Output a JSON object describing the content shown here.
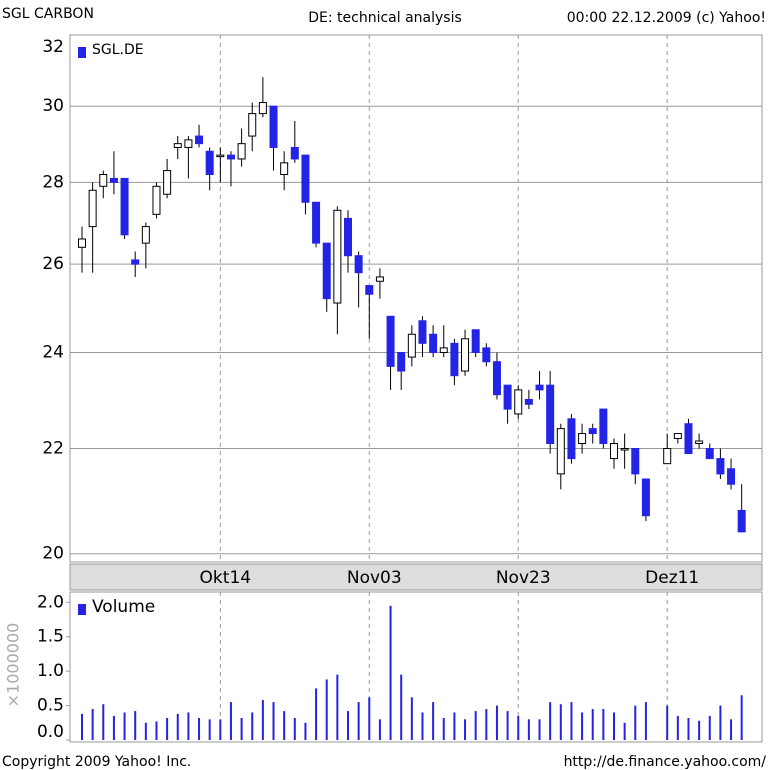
{
  "header": {
    "left": "SGL CARBON",
    "right": "00:00 22.12.2009 (c) Yahoo!"
  },
  "footer": {
    "left": "Copyright 2009 Yahoo! Inc.",
    "right": "http://de.finance.yahoo.com/"
  },
  "chart_data": [
    {
      "type": "candlestick",
      "title": "DE: technical analysis",
      "log_scale": true,
      "grid": true,
      "categories": [
        null,
        null,
        null,
        null,
        null,
        null,
        null,
        null,
        null,
        null,
        null,
        null,
        null,
        "Okt14",
        null,
        null,
        null,
        null,
        null,
        null,
        null,
        null,
        null,
        null,
        null,
        null,
        null,
        "Nov03",
        null,
        null,
        null,
        null,
        null,
        null,
        null,
        null,
        null,
        null,
        null,
        null,
        null,
        "Nov23",
        null,
        null,
        null,
        null,
        null,
        null,
        null,
        null,
        null,
        null,
        null,
        null,
        null,
        "Dez11",
        null,
        null,
        null,
        null,
        null,
        null,
        null
      ],
      "ylim": [
        19.85,
        32
      ],
      "yticks": [
        20,
        22,
        24,
        26,
        28,
        30,
        32
      ],
      "series": [
        {
          "name": "SGL.DE",
          "color": "#2424e6",
          "up_color": "#ffffff",
          "open": [
            26.4,
            26.9,
            27.9,
            28.1,
            28.1,
            26.1,
            26.5,
            27.2,
            27.7,
            28.9,
            28.9,
            29.2,
            28.8,
            28.7,
            28.7,
            28.6,
            29.2,
            29.8,
            30.0,
            28.2,
            28.9,
            28.7,
            27.5,
            26.5,
            25.1,
            27.1,
            26.2,
            25.5,
            25.6,
            24.8,
            24.0,
            23.9,
            24.7,
            24.4,
            24.0,
            24.2,
            23.6,
            24.5,
            24.1,
            23.8,
            23.3,
            22.7,
            23.0,
            23.3,
            23.3,
            21.5,
            22.6,
            22.1,
            22.4,
            22.8,
            21.8,
            22.0,
            22.0,
            21.4,
            null,
            21.7,
            22.2,
            22.5,
            22.1,
            22.0,
            21.8,
            21.6,
            20.8
          ],
          "high": [
            26.9,
            28.0,
            28.3,
            28.8,
            28.1,
            26.3,
            27.0,
            28.0,
            28.6,
            29.2,
            29.2,
            29.5,
            28.9,
            28.9,
            28.8,
            29.4,
            30.1,
            30.8,
            30.0,
            28.8,
            29.6,
            28.7,
            27.5,
            26.5,
            27.4,
            27.3,
            26.3,
            25.5,
            25.9,
            24.8,
            24.0,
            24.6,
            24.8,
            24.6,
            24.6,
            24.3,
            24.5,
            24.5,
            24.2,
            24.0,
            23.3,
            23.3,
            23.2,
            23.6,
            23.6,
            22.5,
            22.7,
            22.5,
            22.5,
            22.8,
            22.2,
            22.3,
            22.0,
            21.4,
            null,
            22.3,
            22.3,
            22.6,
            22.3,
            22.1,
            22.0,
            21.8,
            21.3
          ],
          "low": [
            25.8,
            25.8,
            27.6,
            27.7,
            26.6,
            25.7,
            25.9,
            27.1,
            27.6,
            28.6,
            28.1,
            28.9,
            27.8,
            28.0,
            27.9,
            28.4,
            28.8,
            29.7,
            28.3,
            27.8,
            28.5,
            27.2,
            26.4,
            24.9,
            24.4,
            25.8,
            25.0,
            24.3,
            25.2,
            23.2,
            23.2,
            23.7,
            23.9,
            23.9,
            23.9,
            23.3,
            23.5,
            23.9,
            23.7,
            23.0,
            22.5,
            22.6,
            22.8,
            23.0,
            21.9,
            21.2,
            21.7,
            21.9,
            22.1,
            22.0,
            21.6,
            21.6,
            21.3,
            20.6,
            null,
            21.7,
            22.1,
            21.9,
            22.0,
            21.8,
            21.4,
            21.2,
            20.4
          ],
          "close": [
            26.6,
            27.8,
            28.2,
            28.0,
            26.7,
            26.0,
            26.9,
            27.9,
            28.3,
            29.0,
            29.1,
            29.0,
            28.2,
            28.7,
            28.6,
            29.0,
            29.8,
            30.1,
            28.9,
            28.5,
            28.6,
            27.5,
            26.5,
            25.2,
            27.3,
            26.2,
            25.8,
            25.3,
            25.7,
            23.7,
            23.6,
            24.4,
            24.2,
            24.0,
            24.1,
            23.5,
            24.3,
            24.0,
            23.8,
            23.1,
            22.8,
            23.2,
            22.9,
            23.2,
            22.1,
            22.4,
            21.8,
            22.3,
            22.3,
            22.1,
            22.1,
            22.0,
            21.5,
            20.7,
            null,
            22.0,
            22.3,
            21.9,
            22.15,
            21.8,
            21.5,
            21.3,
            20.4
          ]
        }
      ]
    },
    {
      "type": "bar",
      "ylabel": "×1000000",
      "ylim": [
        0,
        2.15
      ],
      "yticks": [
        {
          "value": 0,
          "label": "0.0"
        },
        0.5,
        {
          "value": 1,
          "label": "1.0"
        },
        1.5,
        {
          "value": 2,
          "label": "2.0"
        }
      ],
      "series": [
        {
          "name": "Volume",
          "color": "#2424e6",
          "values": [
            0.38,
            0.45,
            0.52,
            0.35,
            0.4,
            0.42,
            0.25,
            0.27,
            0.32,
            0.38,
            0.4,
            0.32,
            0.3,
            0.3,
            0.55,
            0.32,
            0.4,
            0.58,
            0.55,
            0.42,
            0.32,
            0.25,
            0.75,
            0.88,
            0.95,
            0.42,
            0.55,
            0.62,
            0.3,
            1.95,
            0.95,
            0.62,
            0.4,
            0.55,
            0.32,
            0.4,
            0.3,
            0.42,
            0.45,
            0.5,
            0.42,
            0.35,
            0.3,
            0.3,
            0.55,
            0.52,
            0.55,
            0.4,
            0.45,
            0.45,
            0.4,
            0.25,
            0.5,
            0.55,
            null,
            0.5,
            0.35,
            0.32,
            0.28,
            0.35,
            0.5,
            0.3,
            0.65
          ]
        }
      ]
    }
  ]
}
